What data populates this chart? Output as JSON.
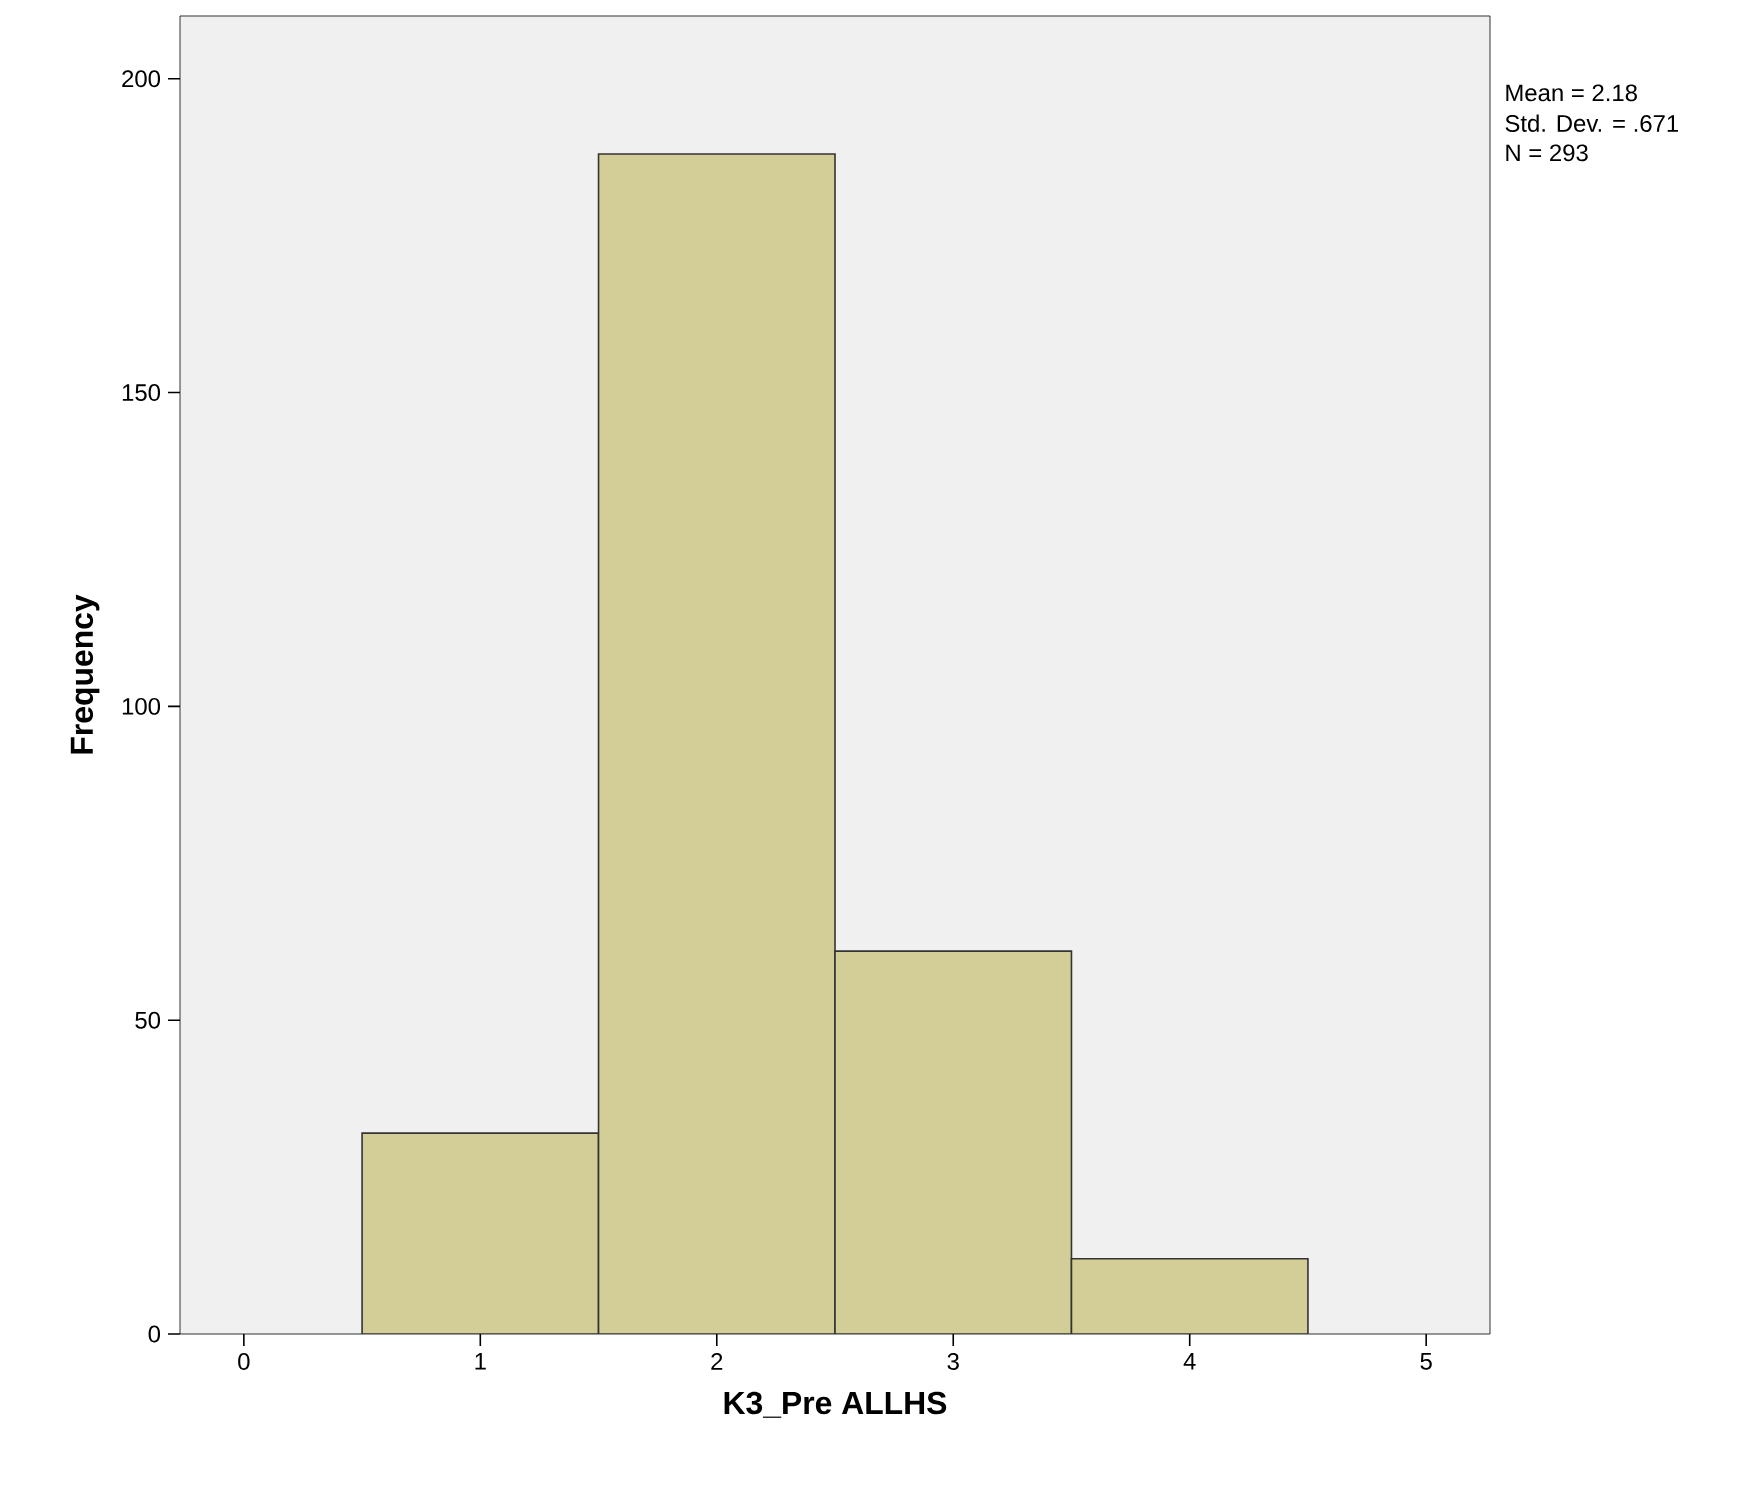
{
  "chart_data": {
    "type": "histogram",
    "xlabel": "K3_Pre ALLHS",
    "ylabel": "Frequency",
    "bins": [
      0.5,
      1.5,
      2.5,
      3.5,
      4.5
    ],
    "values": [
      32,
      188,
      61,
      12
    ],
    "color": "#d3ce98",
    "xlim": [
      -0.27,
      5.27
    ],
    "ylim": [
      0,
      210
    ],
    "xticks": [
      0,
      1,
      2,
      3,
      4,
      5
    ],
    "yticks": [
      0,
      50,
      100,
      150,
      200
    ],
    "grid": false,
    "annotations": [
      "Mean = 2.18",
      "Std. Dev. = .671",
      "N = 293"
    ]
  }
}
